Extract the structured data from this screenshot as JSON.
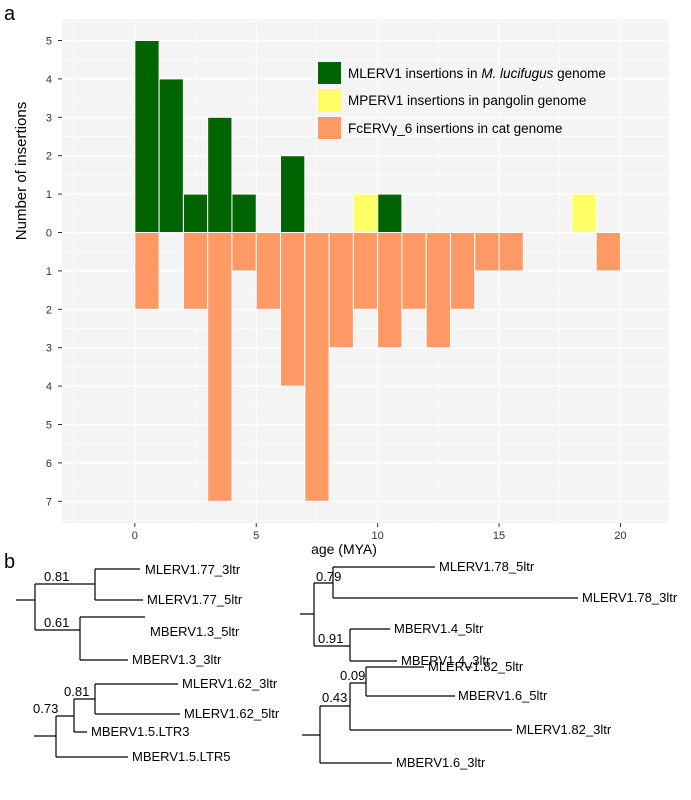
{
  "panel_labels": {
    "a": "a",
    "b": "b"
  },
  "colors": {
    "mlerv": "#006400",
    "mperv": "#ffff66",
    "fcerv": "#ff9966",
    "panel_bg": "#f4f4f4",
    "grid": "#ffffff"
  },
  "chart_data": {
    "type": "bar",
    "xlabel": "age (MYA)",
    "ylabel": "Number of insertions",
    "xlim": [
      -3,
      22
    ],
    "xticks": [
      "0",
      "5",
      "10",
      "15",
      "20"
    ],
    "xtick_values": [
      0,
      5,
      10,
      15,
      20
    ],
    "yticks_up": [
      "0",
      "1",
      "2",
      "3",
      "4",
      "5"
    ],
    "yticks_down": [
      "1",
      "2",
      "3",
      "4",
      "5",
      "6",
      "7"
    ],
    "bin_width": 1,
    "grid": true,
    "legend_placement": "top-right",
    "legend": [
      {
        "series": "MLERV1",
        "before": "MLERV1 insertions in ",
        "italic": "M. lucifugus",
        "after": " genome",
        "color": "#006400"
      },
      {
        "series": "MPERV1",
        "before": "MPERV1 insertions in pangolin genome",
        "italic": "",
        "after": "",
        "color": "#ffff66"
      },
      {
        "series": "FcERV",
        "before": "FcERVγ_6 insertions in cat genome",
        "italic": "",
        "after": "",
        "color": "#ff9966"
      }
    ],
    "series": [
      {
        "name": "MLERV1",
        "direction": "up",
        "color": "#006400",
        "bins": [
          0.5,
          1.5,
          2.5,
          3.5,
          4.5,
          6.5,
          10.5
        ],
        "values": [
          5,
          4,
          1,
          3,
          1,
          2,
          1
        ]
      },
      {
        "name": "MPERV1",
        "direction": "up",
        "color": "#ffff66",
        "bins": [
          9.5,
          18.5
        ],
        "values": [
          1,
          1
        ]
      },
      {
        "name": "FcERV",
        "direction": "down",
        "color": "#ff9966",
        "bins": [
          0.5,
          2.5,
          3.5,
          4.5,
          5.5,
          6.5,
          7.5,
          8.5,
          9.5,
          10.5,
          11.5,
          12.5,
          13.5,
          14.5,
          15.5,
          19.5
        ],
        "values": [
          2,
          2,
          7,
          1,
          2,
          4,
          7,
          3,
          2,
          3,
          2,
          3,
          2,
          1,
          1,
          1
        ]
      }
    ]
  },
  "trees": [
    {
      "top_label": "MLERV1.77_3ltr",
      "mid_label": "MLERV1.77_5ltr",
      "sub_label1": "MBERV1.3_5ltr",
      "sub_label2": "MBERV1.3_3ltr",
      "support1": "0.81",
      "support2": "0.61"
    },
    {
      "top_label": "MLERV1.78_5ltr",
      "mid_label": "MLERV1.78_3ltr",
      "sub_label1": "MBERV1.4_5ltr",
      "sub_label2": "MBERV1.4_3ltr",
      "support1": "0.79",
      "support2": "0.91"
    },
    {
      "top_label": "MLERV1.62_3ltr",
      "mid_label": "MLERV1.62_5ltr",
      "sub_label1": "MBERV1.5.LTR3",
      "sub_label2": "MBERV1.5.LTR5",
      "support1": "0.81",
      "support2": "0.73"
    },
    {
      "top_label": "MLERV1.82_5ltr",
      "mid_label": "MBERV1.6_5ltr",
      "sub_label1": "MLERV1.82_3ltr",
      "sub_label2": "MBERV1.6_3ltr",
      "support1": "0.09",
      "support2": "0.43"
    }
  ]
}
